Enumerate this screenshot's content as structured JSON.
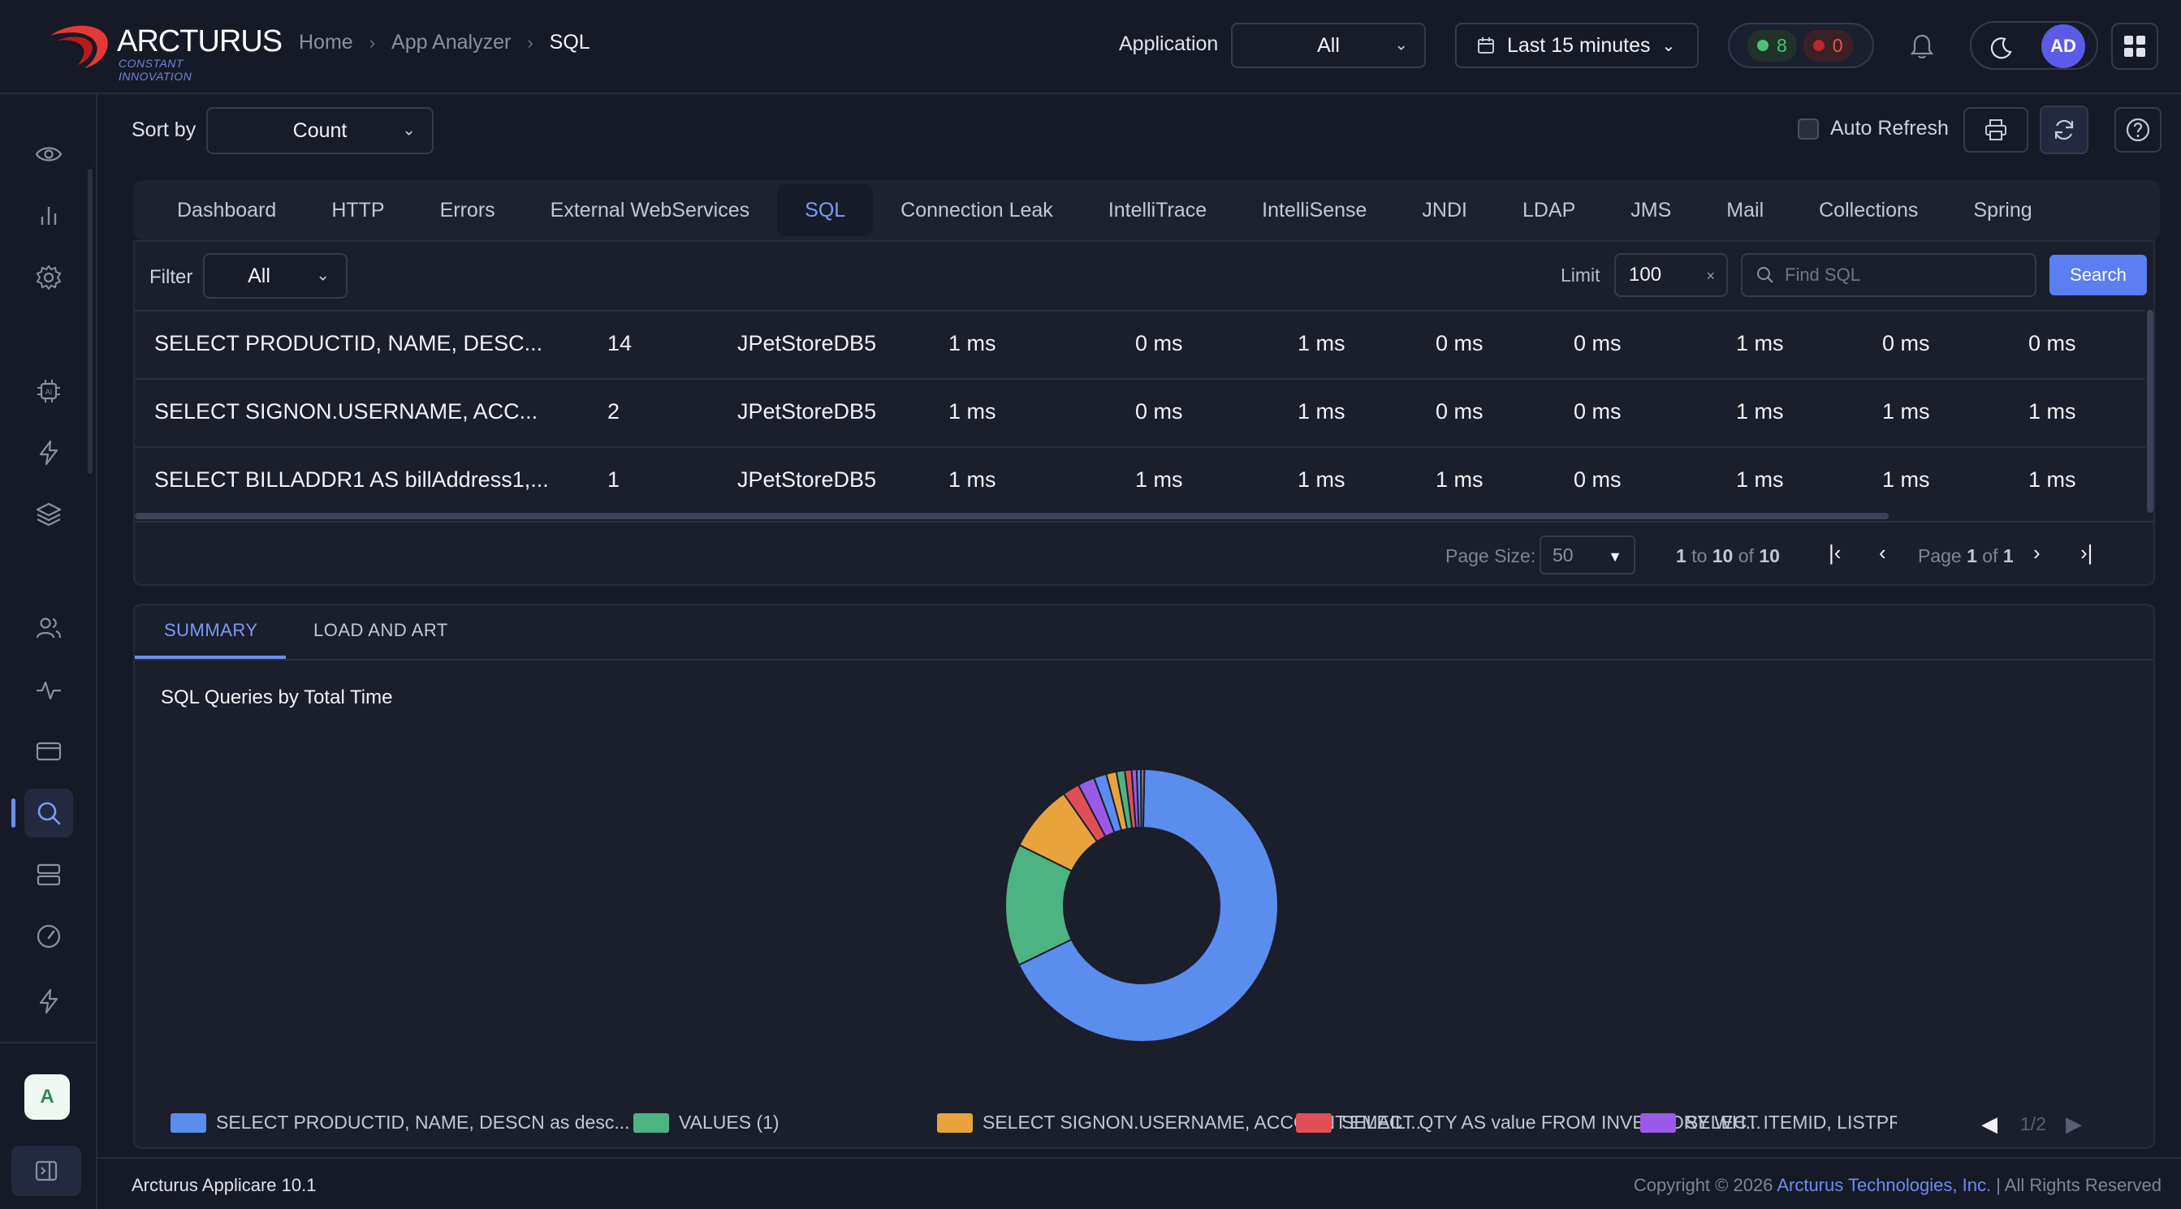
{
  "app": {
    "brand_name": "ARCTURUS",
    "brand_tagline": "CONSTANT INNOVATION",
    "colors": {
      "accent": "#6d8cf0",
      "background": "#161a26",
      "panel": "#1b1f2c"
    }
  },
  "header": {
    "breadcrumbs": [
      "Home",
      "App Analyzer",
      "SQL"
    ],
    "application_label": "Application",
    "application_value": "All",
    "time_range": "Last 15 minutes",
    "status_ok_count": "8",
    "status_error_count": "0",
    "avatar_initials": "AD",
    "icons": [
      "bell-icon",
      "moon-icon",
      "apps-grid-icon",
      "calendar-icon"
    ]
  },
  "sidebar": {
    "items": [
      {
        "icon": "eye-icon"
      },
      {
        "icon": "bar-chart-icon"
      },
      {
        "icon": "gear-icon"
      },
      {
        "icon": "ai-chip-icon"
      },
      {
        "icon": "lightning-icon"
      },
      {
        "icon": "layers-icon"
      },
      {
        "icon": "users-icon"
      },
      {
        "icon": "pulse-icon"
      },
      {
        "icon": "card-icon"
      },
      {
        "icon": "search-icon"
      },
      {
        "icon": "server-icon"
      },
      {
        "icon": "gauge-icon"
      },
      {
        "icon": "bolt-icon"
      }
    ],
    "active": "search-icon",
    "badge": "A"
  },
  "toolbar": {
    "sort_label": "Sort by",
    "sort_value": "Count",
    "auto_refresh_label": "Auto Refresh",
    "auto_refresh_checked": false
  },
  "tabs": [
    "Dashboard",
    "HTTP",
    "Errors",
    "External WebServices",
    "SQL",
    "Connection Leak",
    "IntelliTrace",
    "IntelliSense",
    "JNDI",
    "LDAP",
    "JMS",
    "Mail",
    "Collections",
    "Spring"
  ],
  "active_tab": "SQL",
  "filter": {
    "label": "Filter",
    "value": "All",
    "limit_label": "Limit",
    "limit_value": "100",
    "find_placeholder": "Find SQL",
    "search_label": "Search"
  },
  "table": {
    "rows": [
      [
        "SELECT PRODUCTID, NAME, DESC...",
        "14",
        "JPetStoreDB5",
        "1 ms",
        "0 ms",
        "1 ms",
        "0 ms",
        "0 ms",
        "1 ms",
        "0 ms",
        "0 ms"
      ],
      [
        "SELECT SIGNON.USERNAME, ACC...",
        "2",
        "JPetStoreDB5",
        "1 ms",
        "0 ms",
        "1 ms",
        "0 ms",
        "0 ms",
        "1 ms",
        "1 ms",
        "1 ms"
      ],
      [
        "SELECT BILLADDR1 AS billAddress1,...",
        "1",
        "JPetStoreDB5",
        "1 ms",
        "1 ms",
        "1 ms",
        "1 ms",
        "0 ms",
        "1 ms",
        "1 ms",
        "1 ms"
      ]
    ]
  },
  "pager": {
    "page_size_label": "Page Size:",
    "page_size": "50",
    "range_prefix": "1",
    "range_to": "to",
    "range_end": "10",
    "range_of": "of",
    "range_total": "10",
    "page_label": "Page",
    "page_current": "1",
    "page_of": "of",
    "page_total": "1"
  },
  "bottom_tabs": [
    "SUMMARY",
    "LOAD AND ART"
  ],
  "chart_data": {
    "type": "pie",
    "title": "SQL Queries by Total Time",
    "donut": true,
    "slices": [
      {
        "label": "SELECT PRODUCTID, NAME, DESCN as desc...",
        "value": 67.5,
        "color": "#5b8def"
      },
      {
        "label": "VALUES (1)",
        "value": 14.5,
        "color": "#4db380"
      },
      {
        "label": "SELECT SIGNON.USERNAME, ACCOUNT.EMAIL...",
        "value": 8.0,
        "color": "#e8a33d"
      },
      {
        "label": "SELECT QTY AS value FROM INVENTORY WH...",
        "value": 2.0,
        "color": "#e04f55"
      },
      {
        "label": "SELECT ITEMID, LISTPRI",
        "value": 2.0,
        "color": "#9b59e8"
      },
      {
        "label": "",
        "value": 1.5,
        "color": "#5b8def"
      },
      {
        "label": "",
        "value": 1.2,
        "color": "#e8a33d"
      },
      {
        "label": "",
        "value": 1.0,
        "color": "#4db380"
      },
      {
        "label": "",
        "value": 0.8,
        "color": "#e04f55"
      },
      {
        "label": "",
        "value": 0.6,
        "color": "#9b59e8"
      },
      {
        "label": "",
        "value": 0.5,
        "color": "#5b8def"
      },
      {
        "label": "",
        "value": 0.4,
        "color": "#7a7f8f"
      }
    ],
    "legend_page": "1/2",
    "legend_position": "bottom"
  },
  "footer": {
    "version": "Arcturus Applicare 10.1",
    "copyright_prefix": "Copyright © 2026",
    "company": "Arcturus Technologies, Inc.",
    "rights": "| All Rights Reserved"
  }
}
